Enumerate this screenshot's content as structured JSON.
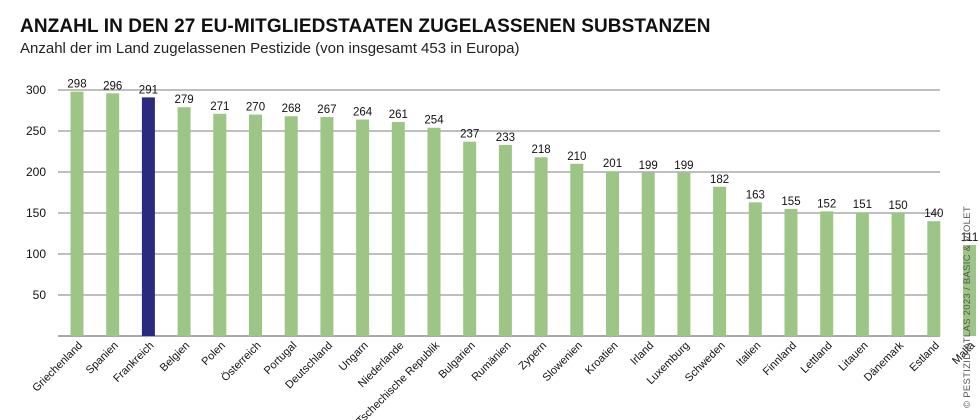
{
  "header": {
    "title": "ANZAHL IN DEN 27 EU-MITGLIEDSTAATEN ZUGELASSENEN SUBSTANZEN",
    "subtitle": "Anzahl der im Land zugelassenen Pestizide (von insgesamt 453 in Europa)"
  },
  "credit": "© PESTIZID-ATLAS 2023 / BASIC & VIOLET",
  "colors": {
    "bar": "#9dc686",
    "highlight": "#2a2a7e",
    "grid": "#555555",
    "text": "#111111"
  },
  "chart_data": {
    "type": "bar",
    "title": "ANZAHL IN DEN 27 EU-MITGLIEDSTAATEN ZUGELASSENEN SUBSTANZEN",
    "subtitle": "Anzahl der im Land zugelassenen Pestizide (von insgesamt 453 in Europa)",
    "xlabel": "",
    "ylabel": "",
    "ylim": [
      0,
      300
    ],
    "yticks": [
      50,
      100,
      150,
      200,
      250,
      300
    ],
    "grid": true,
    "highlight": "Frankreich",
    "categories": [
      "Griechenland",
      "Spanien",
      "Frankreich",
      "Belgien",
      "Polen",
      "Österreich",
      "Portugal",
      "Deutschland",
      "Ungarn",
      "Niederlande",
      "Tschechische Republik",
      "Bulgarien",
      "Rumänien",
      "Zypern",
      "Slowenien",
      "Kroatien",
      "Irland",
      "Luxemburg",
      "Schweden",
      "Italien",
      "Finnland",
      "Lettland",
      "Litauen",
      "Dänemark",
      "Estland",
      "Malta"
    ],
    "values": [
      298,
      296,
      291,
      279,
      271,
      270,
      268,
      267,
      264,
      261,
      254,
      237,
      233,
      218,
      210,
      201,
      199,
      199,
      182,
      163,
      155,
      152,
      151,
      150,
      140,
      111
    ]
  }
}
